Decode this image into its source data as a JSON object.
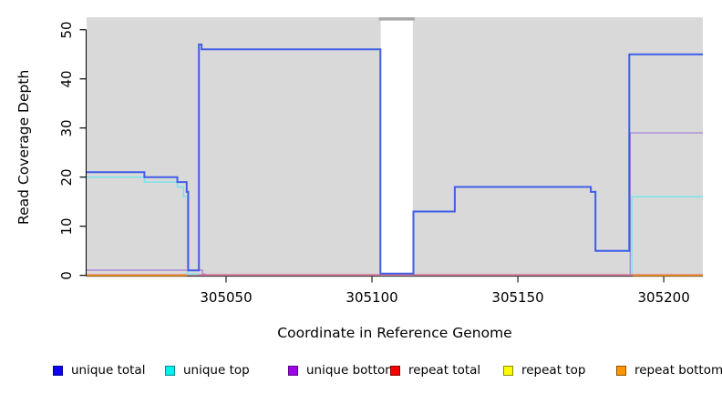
{
  "y_axis": {
    "title": "Read Coverage Depth",
    "ticks": [
      "0",
      "10",
      "20",
      "30",
      "40",
      "50"
    ],
    "tick_values": [
      0,
      10,
      20,
      30,
      40,
      50
    ]
  },
  "x_axis": {
    "title": "Coordinate in Reference Genome",
    "ticks": [
      "305050",
      "305100",
      "305150",
      "305200"
    ],
    "tick_values": [
      305050,
      305100,
      305150,
      305200
    ]
  },
  "legend": {
    "items": [
      {
        "label": "unique total",
        "fill": "#0f00f0",
        "border": "#0000a0"
      },
      {
        "label": "unique top",
        "fill": "#00f0f0",
        "border": "#008c8c"
      },
      {
        "label": "unique bottom",
        "fill": "#9a06e8",
        "border": "#5a0487"
      },
      {
        "label": "repeat total",
        "fill": "#f80000",
        "border": "#8c0000"
      },
      {
        "label": "repeat top",
        "fill": "#fcfc00",
        "border": "#8c8c00"
      },
      {
        "label": "repeat bottom",
        "fill": "#ff9600",
        "border": "#8c5200"
      }
    ]
  },
  "chart_data": {
    "type": "line",
    "subtype": "step-coverage-plot",
    "title": "",
    "xlabel": "Coordinate in Reference Genome",
    "ylabel": "Read Coverage Depth",
    "xlim": [
      305002,
      305213
    ],
    "ylim": [
      0,
      52
    ],
    "xticks": [
      305050,
      305100,
      305150,
      305200
    ],
    "yticks": [
      0,
      10,
      20,
      30,
      40,
      50
    ],
    "grid": false,
    "plot_background": "#d9d9d9",
    "gap_region": {
      "from": 305103,
      "to": 305114,
      "fill": "#ffffff",
      "cap_fill": "#a8a8a8",
      "note": "white vertical band with small dark-gray cap at top"
    },
    "legend_position": "bottom",
    "series": [
      {
        "name": "unique bottom",
        "color": "#a98ad8",
        "width": 1.4,
        "segments": [
          [
            [
              305002.2,
              1.05
            ],
            [
              305041.9,
              1.05
            ],
            [
              305041.9,
              0.3
            ],
            [
              305042.9,
              0.3
            ]
          ],
          [
            [
              305188.5,
              0.3
            ],
            [
              305188.5,
              29
            ],
            [
              305213.4,
              29
            ]
          ]
        ],
        "values_summary": "1 from 305002-305042; 29 from 305188-305213"
      },
      {
        "name": "repeat total",
        "color": "#e0608a",
        "width": 1.4,
        "segments": [
          [
            [
              305002.2,
              0.12
            ],
            [
              305213.4,
              0.12
            ]
          ]
        ],
        "values_summary": "0 across entire region (visible as pink baseline 305042-305188)"
      },
      {
        "name": "repeat top",
        "color": "#fcfc00",
        "width": 1.4,
        "segments": [],
        "values_summary": "0 everywhere, hidden under other baseline lines (not visible)"
      },
      {
        "name": "unique top",
        "color": "#72e4ec",
        "width": 1.4,
        "segments": [
          [
            [
              305002.2,
              20
            ],
            [
              305022,
              20
            ],
            [
              305022,
              19
            ],
            [
              305033.3,
              19
            ],
            [
              305033.3,
              18
            ],
            [
              305035.4,
              18
            ],
            [
              305035.4,
              16
            ],
            [
              305036.8,
              16
            ],
            [
              305036.8,
              0.25
            ],
            [
              305040.7,
              0.25
            ]
          ],
          [
            [
              305189.1,
              0.25
            ],
            [
              305189.1,
              16
            ],
            [
              305213.4,
              16
            ]
          ]
        ],
        "values_summary": "20,19,18,16 steps then 0 near 305037-305041; 16 from 305189-305213"
      },
      {
        "name": "repeat bottom",
        "color": "#ff9a17",
        "width": 1.6,
        "segments": [
          [
            [
              305002.2,
              0
            ],
            [
              305036.6,
              0
            ]
          ],
          [
            [
              305189.4,
              0
            ],
            [
              305213.4,
              0
            ]
          ]
        ],
        "values_summary": "0 visible at left (305002-305037) and right (305189-305213) ends"
      },
      {
        "name": "unique total",
        "color": "#3f5de8",
        "width": 2,
        "segments": [
          [
            [
              305002.2,
              21
            ],
            [
              305022,
              21
            ],
            [
              305022,
              20
            ],
            [
              305033.3,
              20
            ],
            [
              305033.3,
              19
            ],
            [
              305036.5,
              19
            ],
            [
              305036.5,
              17
            ],
            [
              305037,
              17
            ],
            [
              305037,
              1
            ],
            [
              305040.7,
              1
            ],
            [
              305040.7,
              47
            ],
            [
              305041.6,
              47
            ],
            [
              305041.6,
              46
            ],
            [
              305102.9,
              46
            ],
            [
              305102.9,
              0.35
            ],
            [
              305114.2,
              0.35
            ],
            [
              305114.2,
              13
            ],
            [
              305128.4,
              13
            ],
            [
              305128.4,
              18
            ],
            [
              305175,
              18
            ],
            [
              305175,
              17
            ],
            [
              305176.6,
              17
            ],
            [
              305176.6,
              5
            ],
            [
              305188.2,
              5
            ],
            [
              305188.2,
              45
            ],
            [
              305213.4,
              45
            ]
          ],
          []
        ],
        "values_summary": "21,20,19,17 steps; dip to 1; spike 47 then plateau 46 to 305103; 0 through gap; 13; 18; 17; 5; 45 to end"
      }
    ]
  }
}
